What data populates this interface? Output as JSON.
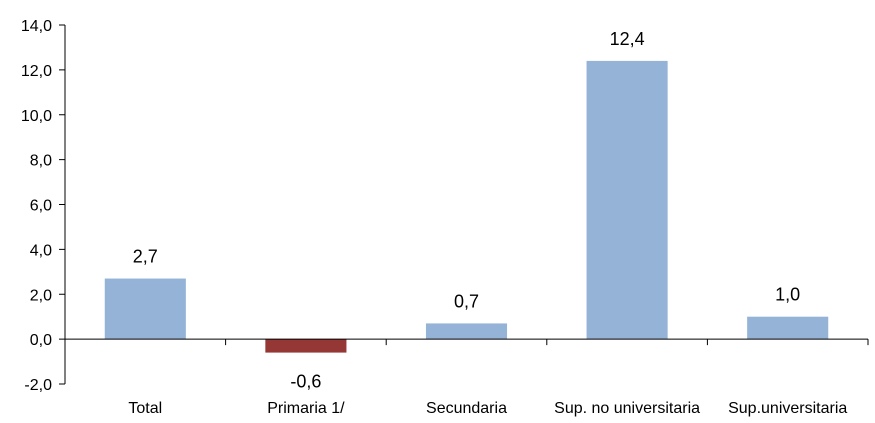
{
  "chart_data": {
    "type": "bar",
    "categories": [
      "Total",
      "Primaria 1/",
      "Secundaria",
      "Sup. no universitaria",
      "Sup.universitaria"
    ],
    "values": [
      2.7,
      -0.6,
      0.7,
      12.4,
      1.0
    ],
    "value_labels": [
      "2,7",
      "-0,6",
      "0,7",
      "12,4",
      "1,0"
    ],
    "ylim": [
      -2.0,
      14.0
    ],
    "yticks": [
      -2.0,
      0.0,
      2.0,
      4.0,
      6.0,
      8.0,
      10.0,
      12.0,
      14.0
    ],
    "ytick_labels": [
      "-2,0",
      "0,0",
      "2,0",
      "4,0",
      "6,0",
      "8,0",
      "10,0",
      "12,0",
      "14,0"
    ],
    "title": "",
    "xlabel": "",
    "ylabel": "",
    "grid": false,
    "colors": {
      "positive": "#95B3D7",
      "negative": "#953735",
      "axis": "#000000",
      "text": "#000000"
    }
  }
}
